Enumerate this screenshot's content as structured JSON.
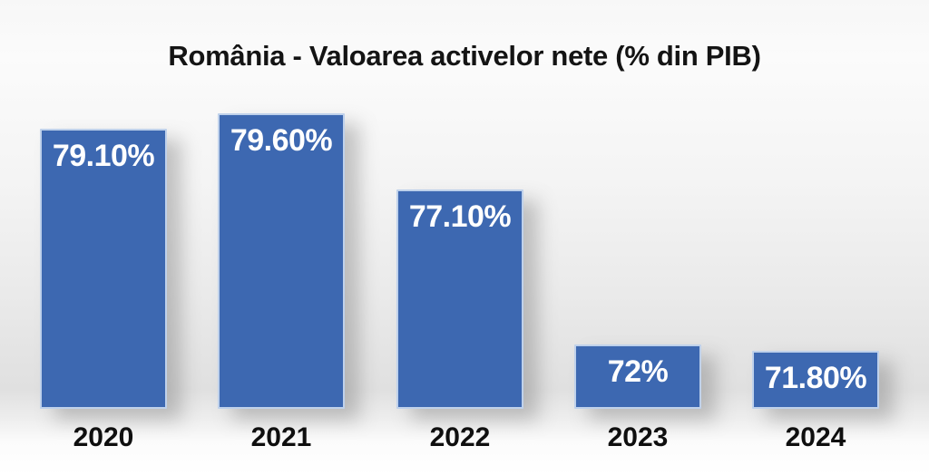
{
  "chart_data": {
    "type": "bar",
    "title": "România - Valoarea activelor nete (% din PIB)",
    "categories": [
      "2020",
      "2021",
      "2022",
      "2023",
      "2024"
    ],
    "values": [
      79.1,
      79.6,
      77.1,
      72.0,
      71.8
    ],
    "value_labels": [
      "79.10%",
      "79.60%",
      "77.10%",
      "72%",
      "71.80%"
    ],
    "xlabel": "",
    "ylabel": "",
    "ylim": [
      70,
      80
    ],
    "grid": false,
    "legend_position": "none",
    "bar_color": "#3d68b1",
    "bar_edge_color": "#d6e4f6",
    "value_label_color": "#ffffff",
    "title_color": "#141414",
    "category_label_color": "#0f0f0f"
  }
}
